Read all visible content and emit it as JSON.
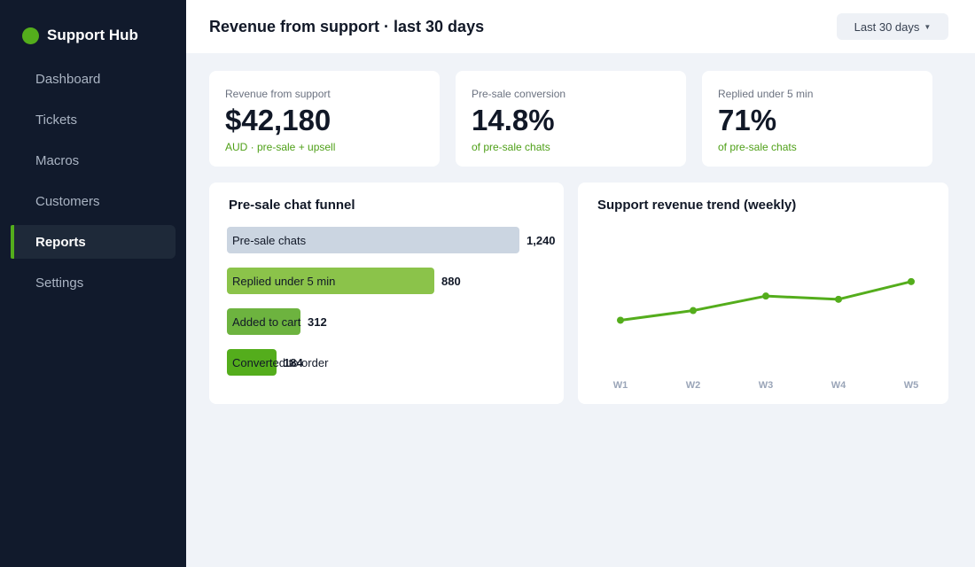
{
  "app": {
    "name": "Support Hub",
    "accent": "#54ad1c"
  },
  "sidebar": {
    "items": [
      {
        "label": "Dashboard",
        "active": false
      },
      {
        "label": "Tickets",
        "active": false
      },
      {
        "label": "Macros",
        "active": false
      },
      {
        "label": "Customers",
        "active": false
      },
      {
        "label": "Reports",
        "active": true
      },
      {
        "label": "Settings",
        "active": false
      }
    ]
  },
  "header": {
    "title": "Revenue from support · last 30 days",
    "range_label": "Last 30 days",
    "range_icon": "caret-down-icon"
  },
  "kpis": [
    {
      "label": "Revenue from support",
      "value": "$42,180",
      "sub": "AUD · pre-sale + upsell"
    },
    {
      "label": "Pre-sale conversion",
      "value": "14.8%",
      "sub": "of pre-sale chats"
    },
    {
      "label": "Replied under 5 min",
      "value": "71%",
      "sub": "of pre-sale chats"
    }
  ],
  "funnel": {
    "title": "Pre-sale chat funnel",
    "steps": [
      {
        "label": "Pre-sale chats",
        "value": "1,240",
        "count": 1240,
        "color": "#cbd5e1"
      },
      {
        "label": "Replied under 5 min",
        "value": "880",
        "count": 880,
        "color": "#8bc34a"
      },
      {
        "label": "Added to cart",
        "value": "312",
        "count": 312,
        "color": "#6db33f"
      },
      {
        "label": "Converted to order",
        "value": "184",
        "count": 184,
        "color": "#54ad1c"
      }
    ]
  },
  "trend": {
    "title": "Support revenue trend (weekly)",
    "line_color": "#54ad1c"
  },
  "chart_data": {
    "type": "line",
    "title": "Support revenue trend (weekly)",
    "categories": [
      "W1",
      "W2",
      "W3",
      "W4",
      "W5"
    ],
    "series": [
      {
        "values": [
          8200,
          9400,
          11200,
          10800,
          13000
        ]
      }
    ],
    "ylim": [
      0,
      22000
    ],
    "grid": false
  }
}
